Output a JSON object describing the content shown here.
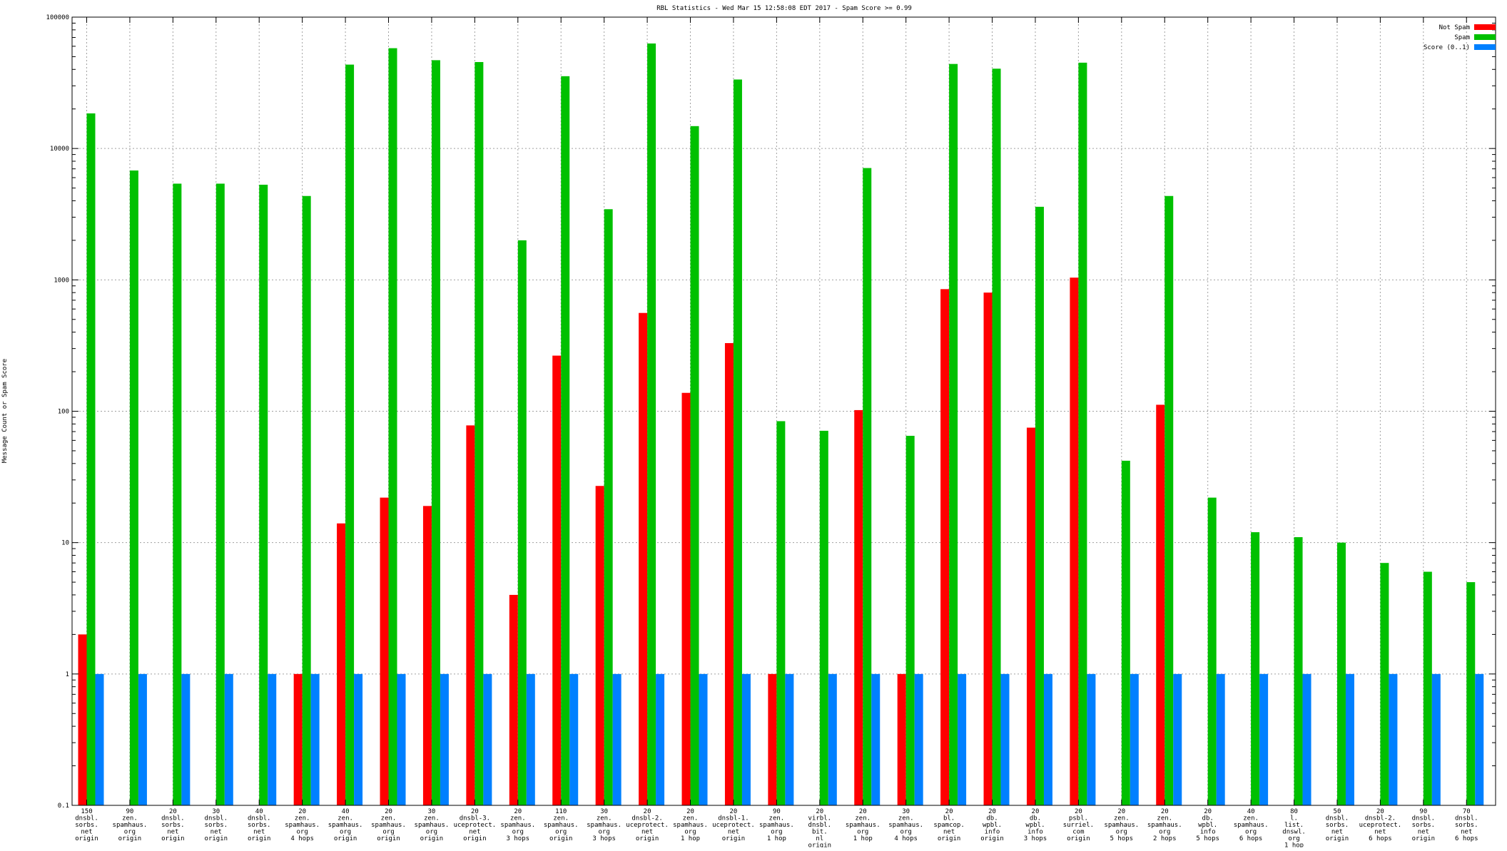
{
  "chart_data": {
    "type": "bar",
    "title": "RBL Statistics - Wed Mar 15 12:58:08 EDT 2017 - Spam Score >= 0.99",
    "xlabel": "",
    "ylabel": "Message Count or Spam Score",
    "yscale": "log",
    "ylim": [
      0.1,
      100000
    ],
    "yticks": [
      "0.1",
      "1",
      "10",
      "100",
      "1000",
      "10000",
      "100000"
    ],
    "grid": true,
    "legend_position": "top-right",
    "categories": [
      [
        "150",
        "dnsbl.",
        "sorbs.",
        "net",
        "origin"
      ],
      [
        "90",
        "zen.",
        "spamhaus.",
        "org",
        "origin"
      ],
      [
        "20",
        "dnsbl.",
        "sorbs.",
        "net",
        "origin"
      ],
      [
        "30",
        "dnsbl.",
        "sorbs.",
        "net",
        "origin"
      ],
      [
        "40",
        "dnsbl.",
        "sorbs.",
        "net",
        "origin"
      ],
      [
        "20",
        "zen.",
        "spamhaus.",
        "org",
        "4 hops"
      ],
      [
        "40",
        "zen.",
        "spamhaus.",
        "org",
        "origin"
      ],
      [
        "20",
        "zen.",
        "spamhaus.",
        "org",
        "origin"
      ],
      [
        "30",
        "zen.",
        "spamhaus.",
        "org",
        "origin"
      ],
      [
        "20",
        "dnsbl-3.",
        "uceprotect.",
        "net",
        "origin"
      ],
      [
        "20",
        "zen.",
        "spamhaus.",
        "org",
        "3 hops"
      ],
      [
        "110",
        "zen.",
        "spamhaus.",
        "org",
        "origin"
      ],
      [
        "30",
        "zen.",
        "spamhaus.",
        "org",
        "3 hops"
      ],
      [
        "20",
        "dnsbl-2.",
        "uceprotect.",
        "net",
        "origin"
      ],
      [
        "20",
        "zen.",
        "spamhaus.",
        "org",
        "1 hop"
      ],
      [
        "20",
        "dnsbl-1.",
        "uceprotect.",
        "net",
        "origin"
      ],
      [
        "90",
        "zen.",
        "spamhaus.",
        "org",
        "1 hop"
      ],
      [
        "20",
        "virbl.",
        "dnsbl.",
        "bit.",
        "nl",
        "origin"
      ],
      [
        "20",
        "zen.",
        "spamhaus.",
        "org",
        "1 hop"
      ],
      [
        "30",
        "zen.",
        "spamhaus.",
        "org",
        "4 hops"
      ],
      [
        "20",
        "bl.",
        "spamcop.",
        "net",
        "origin"
      ],
      [
        "20",
        "db.",
        "wpbl.",
        "info",
        "origin"
      ],
      [
        "20",
        "db.",
        "wpbl.",
        "info",
        "3 hops"
      ],
      [
        "20",
        "psbl.",
        "surriel.",
        "com",
        "origin"
      ],
      [
        "20",
        "zen.",
        "spamhaus.",
        "org",
        "5 hops"
      ],
      [
        "20",
        "zen.",
        "spamhaus.",
        "org",
        "2 hops"
      ],
      [
        "20",
        "db.",
        "wpbl.",
        "info",
        "5 hops"
      ],
      [
        "40",
        "zen.",
        "spamhaus.",
        "org",
        "6 hops"
      ],
      [
        "80",
        "l.",
        "list.",
        "dnswl.",
        "org",
        "1 hop"
      ],
      [
        "50",
        "dnsbl.",
        "sorbs.",
        "net",
        "origin"
      ],
      [
        "20",
        "dnsbl-2.",
        "uceprotect.",
        "net",
        "6 hops"
      ],
      [
        "90",
        "dnsbl.",
        "sorbs.",
        "net",
        "origin"
      ],
      [
        "70",
        "dnsbl.",
        "sorbs.",
        "net",
        "6 hops"
      ]
    ],
    "series": [
      {
        "name": "Not Spam",
        "color": "#ff0000",
        "values": [
          2,
          null,
          null,
          null,
          null,
          1,
          14,
          22,
          19,
          78,
          4,
          265,
          27,
          560,
          138,
          330,
          1,
          null,
          102,
          1,
          850,
          800,
          75,
          1040,
          null,
          112,
          null,
          null,
          null,
          null,
          null,
          null,
          null
        ]
      },
      {
        "name": "Spam",
        "color": "#00c000",
        "values": [
          18500,
          6800,
          5400,
          5400,
          5300,
          4350,
          43500,
          58000,
          47000,
          45500,
          2000,
          35500,
          3450,
          63000,
          14800,
          33500,
          84,
          71,
          7100,
          65,
          44000,
          40500,
          3600,
          45000,
          42,
          4350,
          22,
          12,
          11,
          10,
          7,
          6,
          5
        ]
      },
      {
        "name": "Score (0..1)",
        "color": "#0080ff",
        "values": [
          1,
          1,
          1,
          1,
          1,
          1,
          1,
          1,
          1,
          1,
          1,
          1,
          1,
          1,
          1,
          1,
          1,
          1,
          1,
          1,
          1,
          1,
          1,
          1,
          1,
          1,
          1,
          1,
          1,
          1,
          1,
          1,
          1
        ]
      }
    ]
  }
}
